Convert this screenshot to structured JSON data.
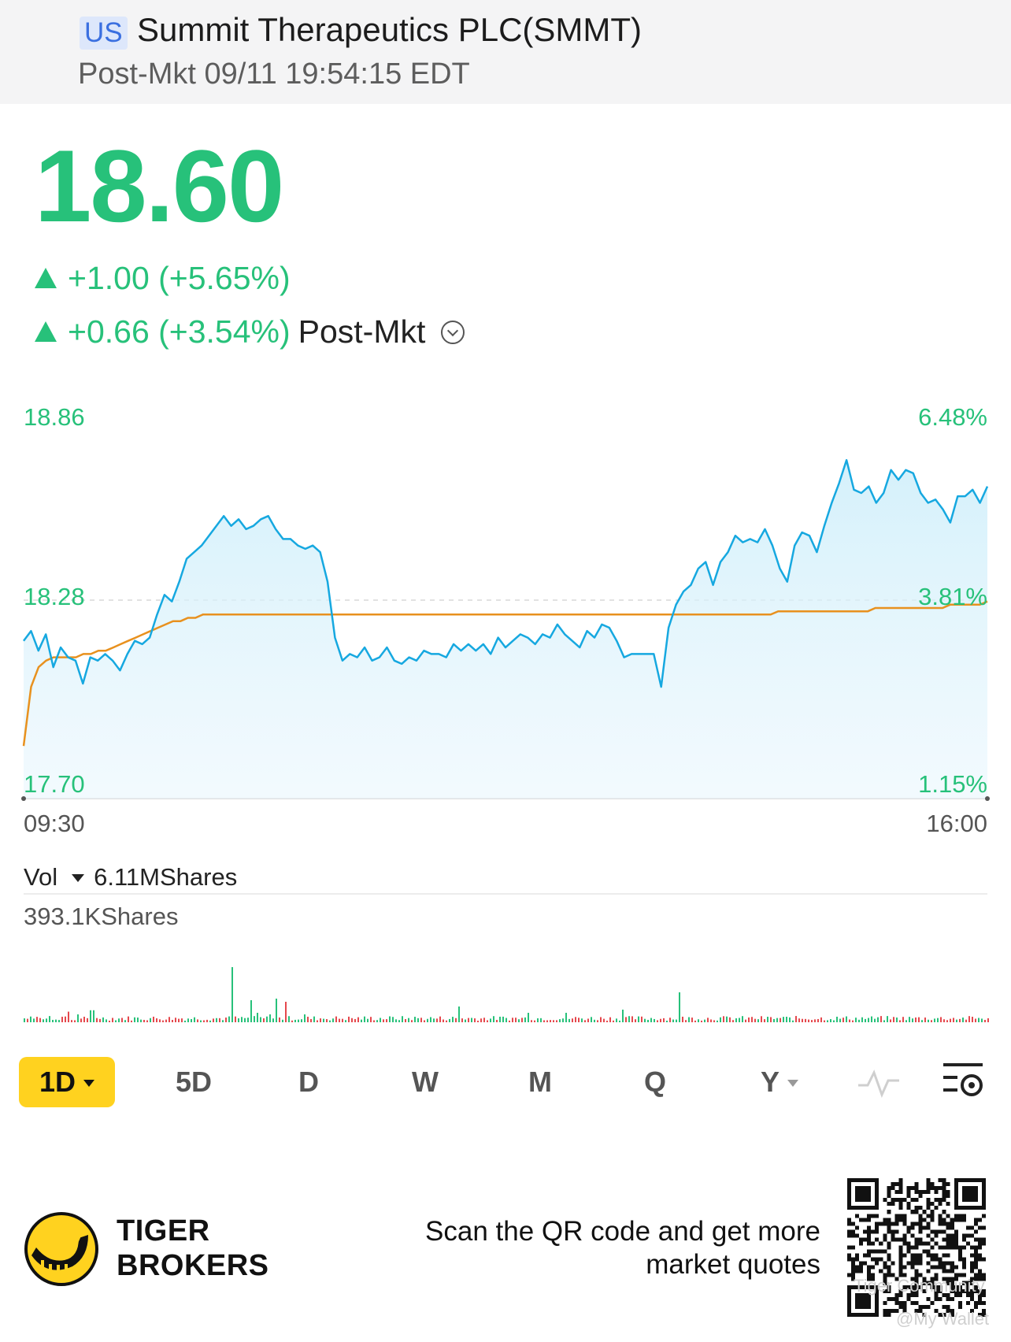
{
  "header": {
    "market": "US",
    "title": "Summit Therapeutics PLC(SMMT)",
    "status": "Post-Mkt 09/11 19:54:15 EDT"
  },
  "quote": {
    "price": "18.60",
    "change": "+1.00 (+5.65%)",
    "post_change": "+0.66 (+3.54%)",
    "post_label": "Post-Mkt",
    "up_color": "#27c17a"
  },
  "chart_data": {
    "type": "line",
    "title": "",
    "y_labels_left": [
      "18.86",
      "18.28",
      "17.70"
    ],
    "y_labels_right": [
      "6.48%",
      "3.81%",
      "1.15%"
    ],
    "x_labels": [
      "09:30",
      "16:00"
    ],
    "ylim": [
      17.7,
      18.86
    ],
    "reference_price": 18.28,
    "series": [
      {
        "color": "#16a8e0",
        "values": [
          18.18,
          18.21,
          18.15,
          18.2,
          18.1,
          18.16,
          18.13,
          18.12,
          18.05,
          18.13,
          18.12,
          18.14,
          18.12,
          18.09,
          18.14,
          18.18,
          18.17,
          18.19,
          18.26,
          18.32,
          18.3,
          18.36,
          18.43,
          18.45,
          18.47,
          18.5,
          18.53,
          18.56,
          18.53,
          18.55,
          18.52,
          18.53,
          18.55,
          18.56,
          18.52,
          18.49,
          18.49,
          18.47,
          18.46,
          18.47,
          18.45,
          18.36,
          18.19,
          18.12,
          18.14,
          18.13,
          18.16,
          18.12,
          18.13,
          18.16,
          18.12,
          18.11,
          18.13,
          18.12,
          18.15,
          18.14,
          18.14,
          18.13,
          18.17,
          18.15,
          18.17,
          18.15,
          18.17,
          18.14,
          18.19,
          18.16,
          18.18,
          18.2,
          18.19,
          18.17,
          18.2,
          18.19,
          18.23,
          18.2,
          18.18,
          18.16,
          18.21,
          18.19,
          18.23,
          18.22,
          18.18,
          18.13,
          18.14,
          18.14,
          18.14,
          18.14,
          18.04,
          18.22,
          18.29,
          18.33,
          18.35,
          18.4,
          18.42,
          18.35,
          18.42,
          18.45,
          18.5,
          18.48,
          18.49,
          18.48,
          18.52,
          18.47,
          18.4,
          18.36,
          18.47,
          18.51,
          18.5,
          18.45,
          18.53,
          18.6,
          18.66,
          18.73,
          18.64,
          18.63,
          18.65,
          18.6,
          18.63,
          18.7,
          18.67,
          18.7,
          18.69,
          18.63,
          18.6,
          18.61,
          18.58,
          18.54,
          18.62,
          18.62,
          18.64,
          18.6,
          18.65
        ]
      },
      {
        "color": "#e8911e",
        "values": [
          17.86,
          18.04,
          18.1,
          18.12,
          18.13,
          18.13,
          18.13,
          18.13,
          18.14,
          18.14,
          18.15,
          18.15,
          18.16,
          18.17,
          18.18,
          18.19,
          18.2,
          18.21,
          18.22,
          18.23,
          18.24,
          18.24,
          18.25,
          18.25,
          18.26,
          18.26,
          18.26,
          18.26,
          18.26,
          18.26,
          18.26,
          18.26,
          18.26,
          18.26,
          18.26,
          18.26,
          18.26,
          18.26,
          18.26,
          18.26,
          18.26,
          18.26,
          18.26,
          18.26,
          18.26,
          18.26,
          18.26,
          18.26,
          18.26,
          18.26,
          18.26,
          18.26,
          18.26,
          18.26,
          18.26,
          18.26,
          18.26,
          18.26,
          18.26,
          18.26,
          18.26,
          18.26,
          18.26,
          18.26,
          18.26,
          18.26,
          18.26,
          18.26,
          18.26,
          18.26,
          18.26,
          18.26,
          18.26,
          18.26,
          18.26,
          18.26,
          18.26,
          18.26,
          18.26,
          18.26,
          18.26,
          18.26,
          18.26,
          18.26,
          18.26,
          18.26,
          18.26,
          18.26,
          18.26,
          18.26,
          18.26,
          18.26,
          18.26,
          18.26,
          18.26,
          18.26,
          18.26,
          18.26,
          18.26,
          18.26,
          18.26,
          18.27,
          18.27,
          18.27,
          18.27,
          18.27,
          18.27,
          18.27,
          18.27,
          18.27,
          18.27,
          18.27,
          18.27,
          18.27,
          18.28,
          18.28,
          18.28,
          18.28,
          18.28,
          18.28,
          18.28,
          18.28,
          18.28,
          18.28,
          18.29,
          18.29,
          18.29,
          18.29,
          18.29,
          18.3
        ]
      }
    ],
    "grid": false
  },
  "volume": {
    "label": "Vol",
    "total": "6.11MShares",
    "max_label": "393.1KShares",
    "up_color": "#27c17a",
    "down_color": "#e5484d"
  },
  "periods": [
    {
      "label": "1D",
      "active": true,
      "dropdown": true
    },
    {
      "label": "5D"
    },
    {
      "label": "D"
    },
    {
      "label": "W"
    },
    {
      "label": "M"
    },
    {
      "label": "Q"
    },
    {
      "label": "Y",
      "dropdown": true
    }
  ],
  "footer": {
    "brand_line1": "TIGER",
    "brand_line2": "BROKERS",
    "promo_line1": "Scan the QR code and get more",
    "promo_line2": "market quotes",
    "watermark1": "Tiger Community",
    "watermark2": "@My Wallet"
  },
  "icons": [
    "indicator-icon",
    "chart-settings-icon",
    "tiger-logo-icon",
    "qr-code",
    "dropdown-chevron-icon"
  ]
}
